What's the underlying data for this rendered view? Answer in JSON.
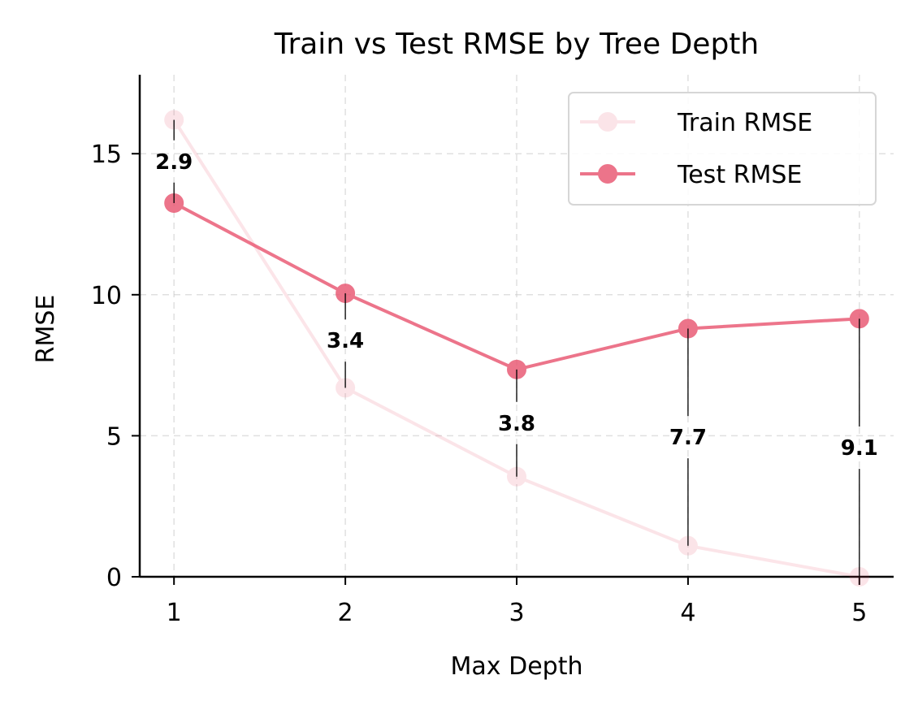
{
  "chart_data": {
    "type": "line",
    "title": "Train vs Test RMSE by Tree Depth",
    "xlabel": "Max Depth",
    "ylabel": "RMSE",
    "x": [
      1,
      2,
      3,
      4,
      5
    ],
    "xticks": [
      "1",
      "2",
      "3",
      "4",
      "5"
    ],
    "yticks": [
      0,
      5,
      10,
      15
    ],
    "ytick_labels": [
      "0",
      "5",
      "10",
      "15"
    ],
    "xlim": [
      0.8,
      5.2
    ],
    "ylim": [
      0,
      17.8
    ],
    "grid": true,
    "legend_position": "top-right",
    "series": [
      {
        "name": "Train RMSE",
        "values": [
          16.2,
          6.7,
          3.55,
          1.1,
          0.0
        ],
        "color": "#e8526e",
        "opacity": 0.15
      },
      {
        "name": "Test RMSE",
        "values": [
          13.25,
          10.05,
          7.35,
          8.8,
          9.15
        ],
        "color": "#e8526e",
        "opacity": 0.8
      }
    ],
    "gap_labels": [
      "2.9",
      "3.4",
      "3.8",
      "7.7",
      "9.1"
    ]
  }
}
